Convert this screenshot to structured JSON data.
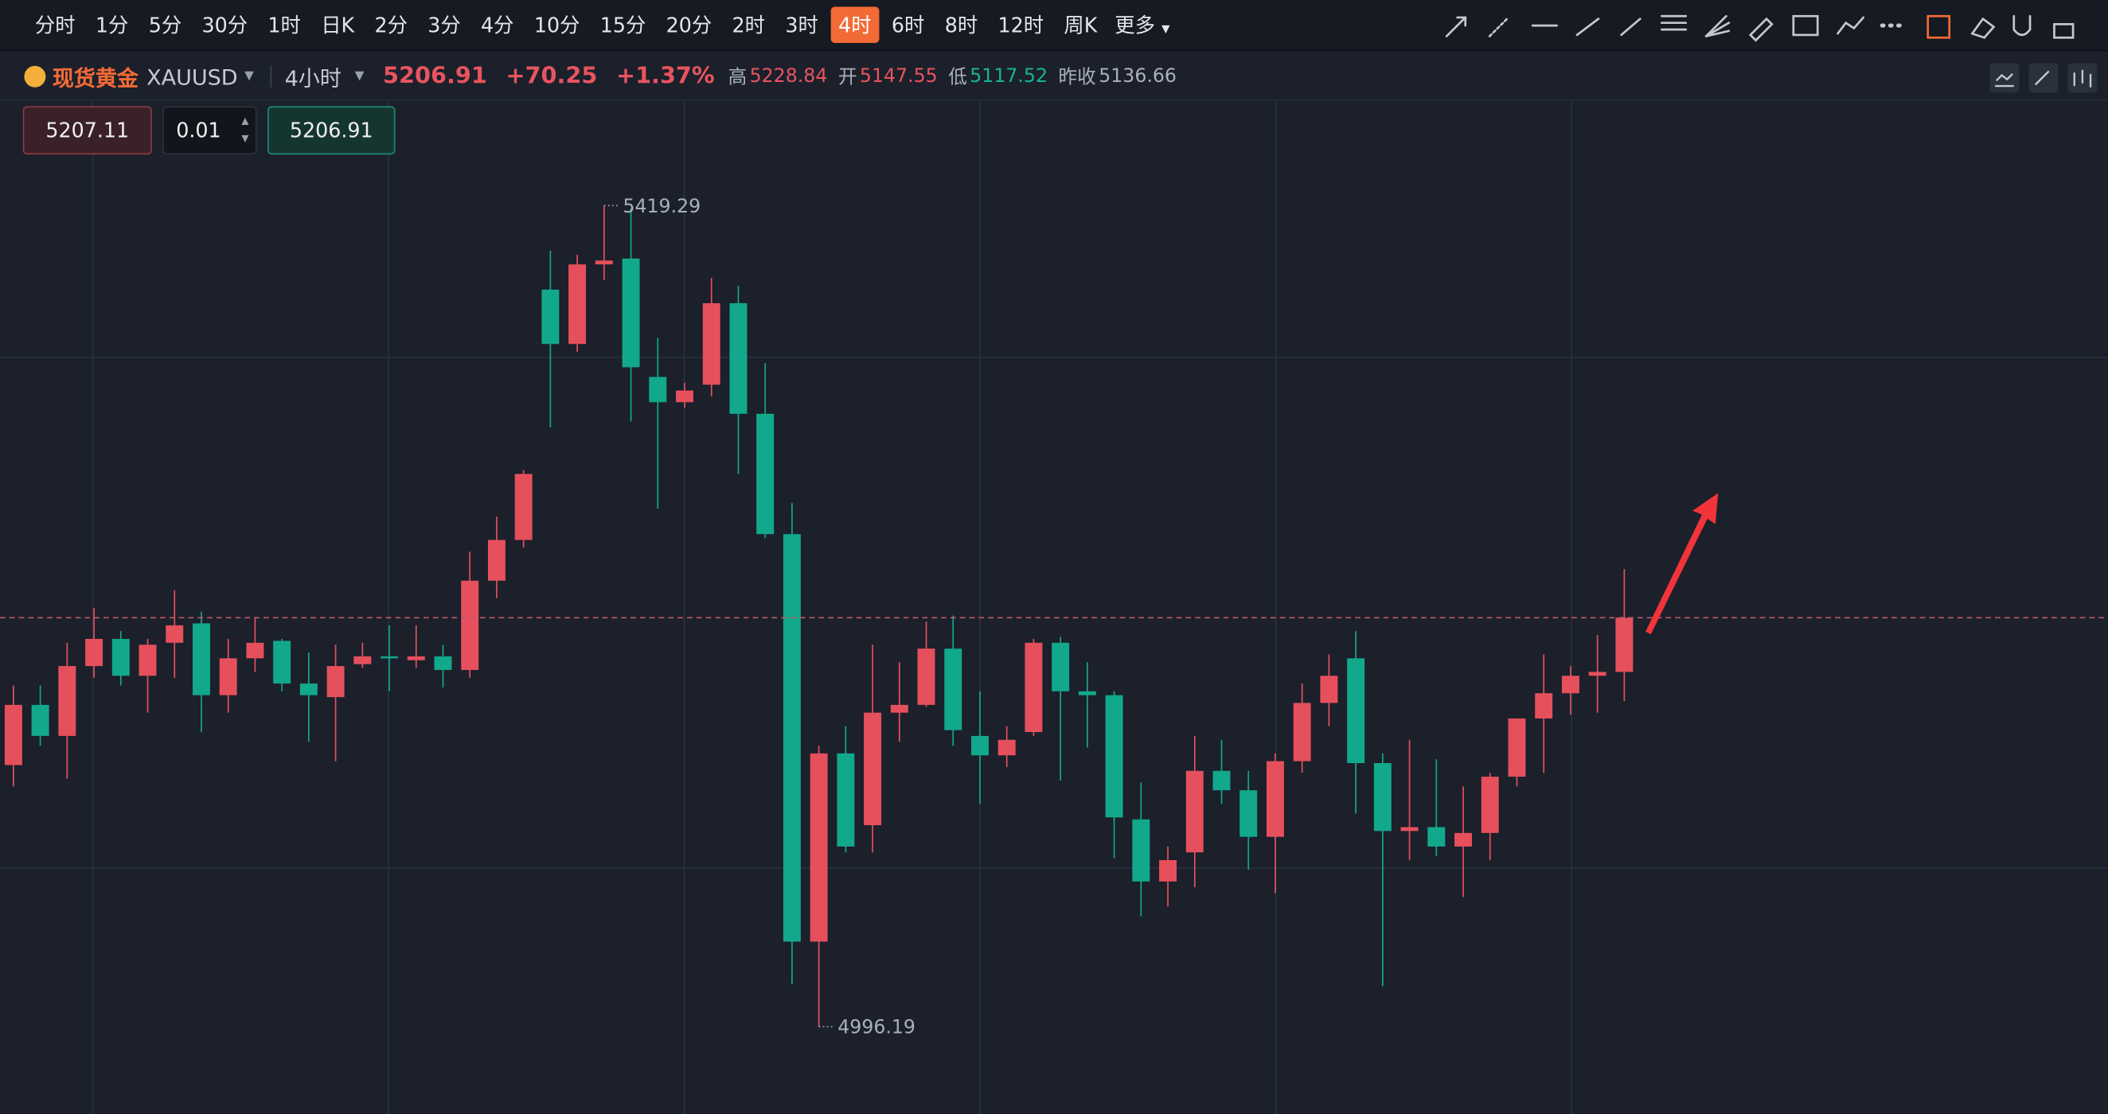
{
  "toolbar": {
    "intervals": [
      "分时",
      "1分",
      "5分",
      "30分",
      "1时",
      "日K",
      "2分",
      "3分",
      "4分",
      "10分",
      "15分",
      "20分",
      "2时",
      "3时",
      "4时",
      "6时",
      "8时",
      "12时",
      "周K"
    ],
    "selected_interval": 14,
    "more": "更多"
  },
  "symbol": {
    "name": "现货黄金",
    "code": "XAUUSD",
    "period": "4小时",
    "price": "5206.91",
    "change": "+70.25",
    "change_pct": "+1.37%",
    "high_label": "高",
    "high": "5228.84",
    "open_label": "开",
    "open": "5147.55",
    "low_label": "低",
    "low": "5117.52",
    "prev_close_label": "昨收",
    "prev_close": "5136.66"
  },
  "order": {
    "sell": "5207.11",
    "qty": "0.01",
    "buy": "5206.91"
  },
  "chart_data": {
    "type": "candlestick",
    "up_color": "#e5505c",
    "down_color": "#12a88b",
    "last_price_color": "#c0576a",
    "candles": [
      [
        5131,
        5172,
        5120,
        5162
      ],
      [
        5162,
        5172,
        5141,
        5146
      ],
      [
        5146,
        5194,
        5124,
        5182
      ],
      [
        5182,
        5212,
        5176,
        5196
      ],
      [
        5196,
        5200,
        5172,
        5177
      ],
      [
        5177,
        5196,
        5158,
        5193
      ],
      [
        5194,
        5221,
        5176,
        5203
      ],
      [
        5204,
        5210,
        5148,
        5167
      ],
      [
        5167,
        5196,
        5158,
        5186
      ],
      [
        5186,
        5207,
        5179,
        5194
      ],
      [
        5195,
        5196,
        5169,
        5173
      ],
      [
        5173,
        5189,
        5143,
        5167
      ],
      [
        5166,
        5193,
        5133,
        5182
      ],
      [
        5183,
        5194,
        5181,
        5187
      ],
      [
        5187,
        5203,
        5169,
        5186
      ],
      [
        5185,
        5203,
        5181,
        5187
      ],
      [
        5187,
        5193,
        5171,
        5180
      ],
      [
        5180,
        5241,
        5176,
        5226
      ],
      [
        5226,
        5259,
        5217,
        5247
      ],
      [
        5247,
        5283,
        5243,
        5281
      ],
      [
        5376,
        5396,
        5305,
        5348
      ],
      [
        5348,
        5394,
        5344,
        5389
      ],
      [
        5389,
        5419.29,
        5381,
        5391
      ],
      [
        5392,
        5418,
        5308,
        5336
      ],
      [
        5331,
        5351,
        5263,
        5318
      ],
      [
        5318,
        5328,
        5315,
        5324
      ],
      [
        5327,
        5382,
        5321,
        5369
      ],
      [
        5369,
        5378,
        5281,
        5312
      ],
      [
        5312,
        5338,
        5248,
        5250
      ],
      [
        5250,
        5266,
        5018,
        5040
      ],
      [
        5040,
        5141,
        4996.19,
        5137
      ],
      [
        5137,
        5151,
        5086,
        5089
      ],
      [
        5100,
        5193,
        5086,
        5158
      ],
      [
        5158,
        5184,
        5143,
        5162
      ],
      [
        5162,
        5205,
        5161,
        5191
      ],
      [
        5191,
        5208,
        5141,
        5149
      ],
      [
        5146,
        5169,
        5111,
        5136
      ],
      [
        5136,
        5151,
        5130,
        5144
      ],
      [
        5148,
        5196,
        5146,
        5194
      ],
      [
        5194,
        5197,
        5123,
        5169
      ],
      [
        5169,
        5184,
        5140,
        5167
      ],
      [
        5167,
        5169,
        5083,
        5104
      ],
      [
        5103,
        5122,
        5053,
        5071
      ],
      [
        5071,
        5089,
        5058,
        5082
      ],
      [
        5086,
        5146,
        5068,
        5128
      ],
      [
        5128,
        5144,
        5111,
        5118
      ],
      [
        5118,
        5128,
        5077,
        5094
      ],
      [
        5094,
        5137,
        5065,
        5133
      ],
      [
        5133,
        5173,
        5127,
        5163
      ],
      [
        5163,
        5188,
        5151,
        5177
      ],
      [
        5186,
        5200,
        5106,
        5132
      ],
      [
        5132,
        5137,
        5017,
        5097
      ],
      [
        5097,
        5144,
        5082,
        5099
      ],
      [
        5099,
        5134,
        5084,
        5089
      ],
      [
        5089,
        5120,
        5063,
        5096
      ],
      [
        5096,
        5127,
        5082,
        5125
      ],
      [
        5125,
        5155,
        5120,
        5155
      ],
      [
        5155,
        5188,
        5127,
        5168
      ],
      [
        5168,
        5182,
        5157,
        5177
      ],
      [
        5177,
        5198,
        5158,
        5179
      ],
      [
        5179,
        5232,
        5164,
        5206.91
      ]
    ]
  }
}
